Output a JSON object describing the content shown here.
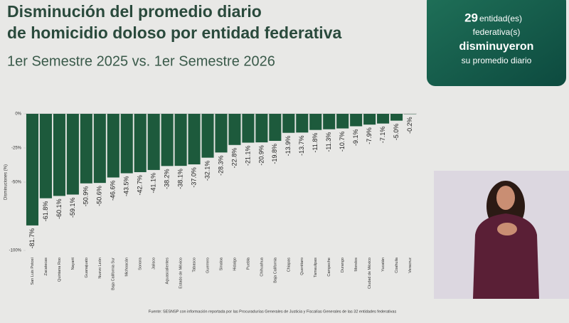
{
  "chart_data": {
    "type": "bar",
    "title": [
      "Disminución del promedio diario",
      "de homicidio doloso por entidad federativa"
    ],
    "subtitle": "1er Semestre 2025 vs. 1er Semestre 2026",
    "y_label": "Disminuciones (%)",
    "source": "Fuente: SESNSP con información reportada por las Procuradurías Generales de Justicia y Fiscalías Generales de las 32 entidades federativas",
    "categories": [
      "San Luis Potosí",
      "Zacatecas",
      "Quintana Roo",
      "Nayarit",
      "Guanajuato",
      "Nuevo León",
      "Baja California Sur",
      "Michoacán",
      "Sonora",
      "Jalisco",
      "Aguascalientes",
      "Estado de México",
      "Tabasco",
      "Guerrero",
      "Sinaloa",
      "Hidalgo",
      "Puebla",
      "Chihuahua",
      "Baja California",
      "Chiapas",
      "Querétaro",
      "Tamaulipas",
      "Campeche",
      "Durango",
      "Morelos",
      "Ciudad de México",
      "Yucatán",
      "Coahuila",
      "Veracruz"
    ],
    "values": [
      -81.7,
      -61.8,
      -60.1,
      -59.1,
      -50.9,
      -50.6,
      -46.6,
      -43.5,
      -42.7,
      -41.1,
      -38.2,
      -38.1,
      -37.0,
      -32.1,
      -28.3,
      -22.8,
      -21.1,
      -20.9,
      -19.8,
      -13.9,
      -13.7,
      -11.8,
      -11.3,
      -10.7,
      -9.1,
      -7.9,
      -7.1,
      -5.0,
      -0.2
    ],
    "value_labels": [
      "-81.7%",
      "-61.8%",
      "-60.1%",
      "-59.1%",
      "-50.9%",
      "-50.6%",
      "-46.6%",
      "-43.5%",
      "-42.7%",
      "-41.1%",
      "-38.2%",
      "-38.1%",
      "-37.0%",
      "-32.1%",
      "-28.3%",
      "-22.8%",
      "-21.1%",
      "-20.9%",
      "-19.8%",
      "-13.9%",
      "-13.7%",
      "-11.8%",
      "-11.3%",
      "-10.7%",
      "-9.1%",
      "-7.9%",
      "-7.1%",
      "-5.0%",
      "-0.2%"
    ],
    "color": "#1d5a3c",
    "ylim": [
      -100,
      0
    ],
    "yticks": [
      {
        "value": 0,
        "label": "0%"
      },
      {
        "value": -25,
        "label": "-25%"
      },
      {
        "value": -50,
        "label": "-50%"
      },
      {
        "value": -100,
        "label": "-100%"
      }
    ]
  },
  "callout": {
    "number": "29",
    "line1": "entidad(es)",
    "line2": "federativa(s)",
    "line3": "disminuyeron",
    "line4": "su promedio diario"
  }
}
